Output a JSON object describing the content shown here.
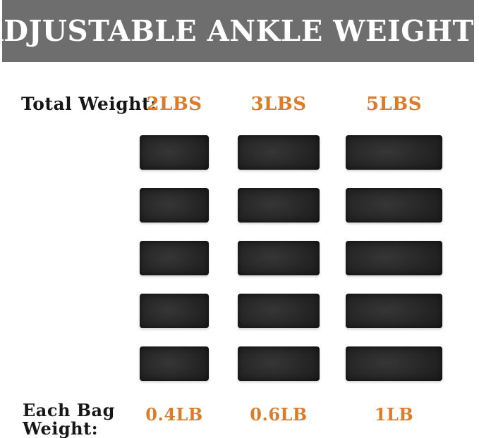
{
  "banner": {
    "title": "ADJUSTABLE ANKLE WEIGHTS",
    "bg_color": "#6e6e6e",
    "text_color": "#ffffff"
  },
  "labels": {
    "total_weight": "Total Weight:",
    "each_bag_line1": "Each Bag",
    "each_bag_line2": "Weight:"
  },
  "columns": [
    {
      "total_weight": "2LBS",
      "bag_weight": "0.4LB",
      "bag_count": 5
    },
    {
      "total_weight": "3LBS",
      "bag_weight": "0.6LB",
      "bag_count": 5
    },
    {
      "total_weight": "5LBS",
      "bag_weight": "1LB",
      "bag_count": 5
    }
  ],
  "colors": {
    "accent_orange": "#db7c2b",
    "banner_gray": "#6e6e6e",
    "bag_black": "#1e1e1e",
    "text_black": "#161616",
    "background": "#ffffff"
  }
}
